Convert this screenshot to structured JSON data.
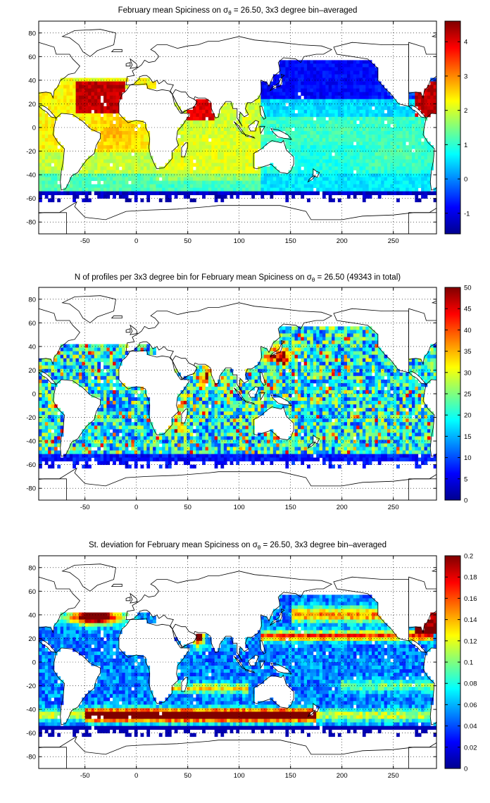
{
  "chart_data": [
    {
      "type": "heatmap",
      "title": "February mean Spiciness on σθ = 26.50, 3x3 degree bin–averaged",
      "title_parts": {
        "before": "February mean Spiciness on σ",
        "sub": "θ",
        "after": " = 26.50, 3x3 degree bin–averaged"
      },
      "xlabel": "",
      "ylabel": "",
      "xlim": [
        -95,
        292
      ],
      "ylim": [
        -90,
        90
      ],
      "xticks": [
        -50,
        0,
        50,
        100,
        150,
        200,
        250
      ],
      "yticks": [
        80,
        60,
        40,
        20,
        0,
        -20,
        -40,
        -60,
        -80
      ],
      "grid": true,
      "colorbar": {
        "min": -1.6,
        "max": 4.6,
        "ticks": [
          4,
          3,
          2,
          1,
          0,
          -1
        ]
      },
      "field": "spiciness"
    },
    {
      "type": "heatmap",
      "title": "N of profiles per 3x3 degree bin for February mean Spiciness on σθ = 26.50 (49343 in total)",
      "title_parts": {
        "before": "N of profiles per 3x3 degree bin for February mean Spiciness on σ",
        "sub": "θ",
        "after": " = 26.50 (49343 in total)"
      },
      "xlabel": "",
      "ylabel": "",
      "xlim": [
        -95,
        292
      ],
      "ylim": [
        -90,
        90
      ],
      "xticks": [
        -50,
        0,
        50,
        100,
        150,
        200,
        250
      ],
      "yticks": [
        80,
        60,
        40,
        20,
        0,
        -20,
        -40,
        -60,
        -80
      ],
      "grid": true,
      "colorbar": {
        "min": 0,
        "max": 50,
        "ticks": [
          50,
          45,
          40,
          35,
          30,
          25,
          20,
          15,
          10,
          5,
          0
        ]
      },
      "field": "count"
    },
    {
      "type": "heatmap",
      "title": "St. deviation for February mean Spiciness on σθ = 26.50, 3x3 degree bin–averaged",
      "title_parts": {
        "before": "St. deviation for February mean Spiciness on σ",
        "sub": "θ",
        "after": " = 26.50, 3x3 degree bin–averaged"
      },
      "xlabel": "",
      "ylabel": "",
      "xlim": [
        -95,
        292
      ],
      "ylim": [
        -90,
        90
      ],
      "xticks": [
        -50,
        0,
        50,
        100,
        150,
        200,
        250
      ],
      "yticks": [
        80,
        60,
        40,
        20,
        0,
        -20,
        -40,
        -60,
        -80
      ],
      "grid": true,
      "colorbar": {
        "min": 0,
        "max": 0.2,
        "ticks": [
          0.2,
          0.18,
          0.16,
          0.14,
          0.12,
          0.1,
          0.08,
          0.06,
          0.04,
          0.02,
          0
        ]
      },
      "field": "stdev"
    }
  ]
}
